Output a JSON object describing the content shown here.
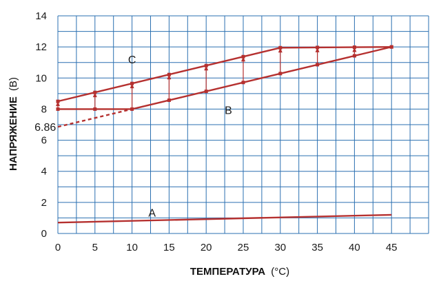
{
  "chart_data": {
    "type": "line",
    "xlabel_main": "ТЕМПЕРАТУРА",
    "xlabel_unit": "(°C)",
    "ylabel_main": "НАПРЯЖЕНИЕ",
    "ylabel_unit": "(В)",
    "xlim": [
      0,
      50
    ],
    "ylim": [
      0,
      14
    ],
    "x_ticks": [
      0,
      5,
      10,
      15,
      20,
      25,
      30,
      35,
      40,
      45
    ],
    "y_ticks": [
      0,
      2,
      4,
      6,
      8,
      10,
      12,
      14
    ],
    "grid": true,
    "line_color": "#b5302f",
    "grid_color": "#2a6fb0",
    "series": [
      {
        "name": "C",
        "values": [
          [
            0,
            8.5
          ],
          [
            30,
            11.95
          ],
          [
            45,
            12.0
          ]
        ]
      },
      {
        "name": "B",
        "values": [
          [
            0,
            8.0
          ],
          [
            10,
            8.0
          ],
          [
            45,
            12.0
          ]
        ]
      },
      {
        "name": "A",
        "values": [
          [
            0,
            0.7
          ],
          [
            45,
            1.2
          ]
        ]
      }
    ],
    "extrapolation": {
      "values": [
        [
          0,
          6.86
        ],
        [
          10,
          8.0
        ]
      ],
      "style": "dashed"
    },
    "arrows_x": [
      0,
      5,
      10,
      15,
      20,
      25,
      30,
      35,
      40
    ],
    "markers_x": [
      0,
      5,
      10,
      15,
      20,
      25,
      30,
      35,
      40,
      45
    ],
    "annotations": [
      {
        "text": "C",
        "x": 10,
        "y": 11.2
      },
      {
        "text": "B",
        "x": 23,
        "y": 7.95
      },
      {
        "text": "A",
        "x": 12.7,
        "y": 1.35
      },
      {
        "text": "6.86",
        "x": -1.7,
        "y": 6.86
      }
    ]
  }
}
